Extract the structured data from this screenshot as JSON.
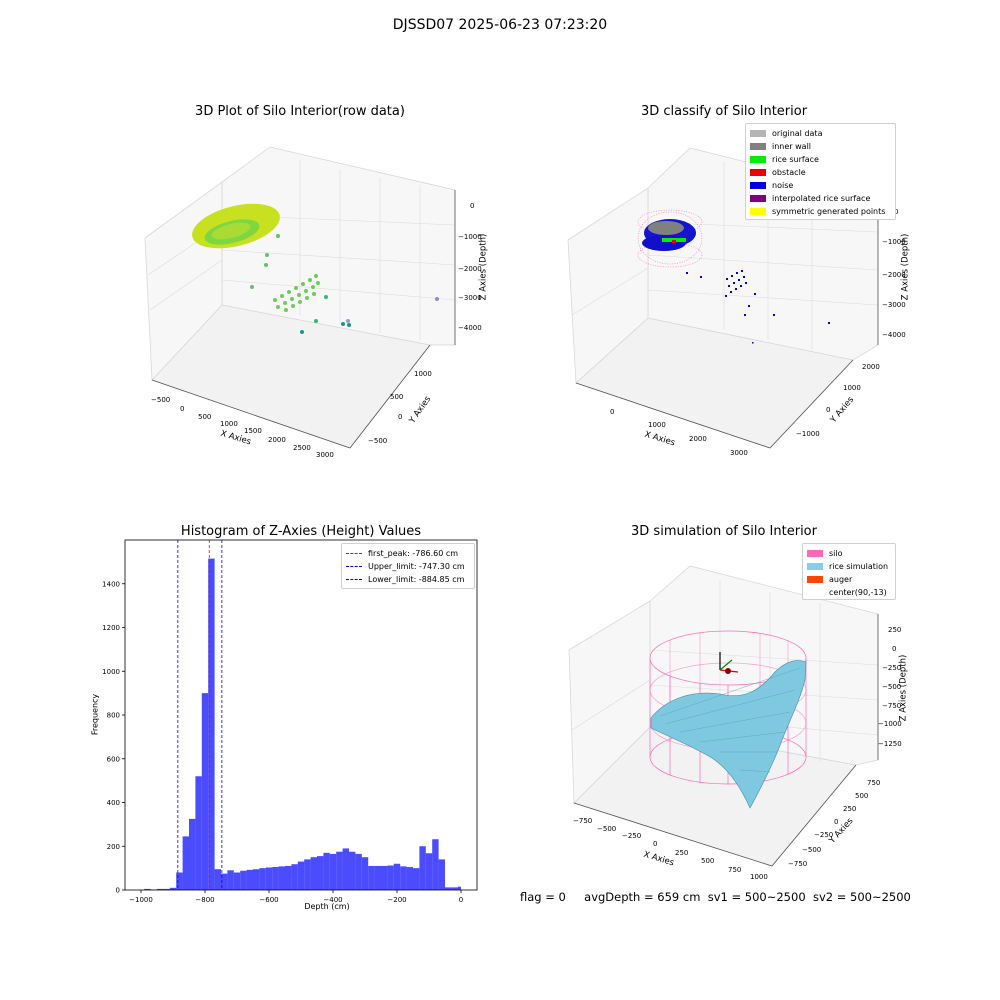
{
  "suptitle": "DJSSD07 2025-06-23 07:23:20",
  "panels": {
    "p1": {
      "title": "3D Plot of Silo Interior(row data)",
      "xlabel": "X Axies",
      "ylabel": "Y Axies",
      "zlabel": "Z Axies (Depth)",
      "xticks": [
        "−500",
        "0",
        "500",
        "1000",
        "1500",
        "2000",
        "2500",
        "3000"
      ],
      "yticks": [
        "1000",
        "500",
        "0",
        "−500"
      ],
      "zticks": [
        "0",
        "−1000",
        "−2000",
        "−3000",
        "−4000"
      ]
    },
    "p2": {
      "title": "3D classify of Silo Interior",
      "xlabel": "X Axies",
      "ylabel": "Y Axies",
      "zlabel": "Z Axies (Depth)",
      "xticks": [
        "0",
        "1000",
        "2000",
        "3000"
      ],
      "yticks": [
        "2000",
        "1000",
        "0",
        "−1000"
      ],
      "zticks": [
        "0",
        "−1000",
        "−2000",
        "−3000",
        "−4000"
      ],
      "legend": [
        {
          "label": "original data",
          "color": "#b4b4b4"
        },
        {
          "label": "inner wall",
          "color": "#808080"
        },
        {
          "label": "rice surface",
          "color": "#00ee00"
        },
        {
          "label": "obstacle",
          "color": "#ee0000"
        },
        {
          "label": "noise",
          "color": "#0000dd"
        },
        {
          "label": "interpolated rice surface",
          "color": "#800080"
        },
        {
          "label": "symmetric generated points",
          "color": "#ffff00"
        }
      ]
    },
    "p3": {
      "title": "3D simulation of Silo Interior",
      "xlabel": "X Axies",
      "ylabel": "Y Axies",
      "zlabel": "Z Axies (Depth)",
      "xticks": [
        "−750",
        "−500",
        "−250",
        "0",
        "250",
        "500",
        "750",
        "1000"
      ],
      "yticks": [
        "750",
        "500",
        "250",
        "0",
        "−250",
        "−500",
        "−750"
      ],
      "zticks": [
        "250",
        "0",
        "−250",
        "−500",
        "−750",
        "−1000",
        "−1250"
      ],
      "legend": [
        {
          "label": "silo",
          "color": "#ff69b4"
        },
        {
          "label": "rice simulation",
          "color": "#87ceeb"
        },
        {
          "label": "auger",
          "color": "#ff4500"
        },
        {
          "label": "center(90,-13)",
          "color": "#ffffff"
        }
      ]
    }
  },
  "chart_data": {
    "type": "bar",
    "title": "Histogram of Z-Axies (Height) Values",
    "xlabel": "Depth (cm)",
    "ylabel": "Frequency",
    "xlim": [
      -1050,
      50
    ],
    "ylim": [
      0,
      1600
    ],
    "xticks": [
      -1000,
      -800,
      -600,
      -400,
      -200,
      0
    ],
    "yticks": [
      0,
      200,
      400,
      600,
      800,
      1000,
      1200,
      1400
    ],
    "bar_color": "#0000ff",
    "bins": [
      {
        "x0": -1010,
        "x1": -990,
        "y": 0
      },
      {
        "x0": -990,
        "x1": -970,
        "y": 5
      },
      {
        "x0": -970,
        "x1": -950,
        "y": 2
      },
      {
        "x0": -950,
        "x1": -930,
        "y": 5
      },
      {
        "x0": -930,
        "x1": -910,
        "y": 5
      },
      {
        "x0": -910,
        "x1": -890,
        "y": 10
      },
      {
        "x0": -890,
        "x1": -870,
        "y": 80
      },
      {
        "x0": -870,
        "x1": -850,
        "y": 245
      },
      {
        "x0": -850,
        "x1": -830,
        "y": 325
      },
      {
        "x0": -830,
        "x1": -810,
        "y": 520
      },
      {
        "x0": -810,
        "x1": -790,
        "y": 900
      },
      {
        "x0": -790,
        "x1": -770,
        "y": 1515
      },
      {
        "x0": -770,
        "x1": -750,
        "y": 95
      },
      {
        "x0": -750,
        "x1": -730,
        "y": 75
      },
      {
        "x0": -730,
        "x1": -710,
        "y": 90
      },
      {
        "x0": -710,
        "x1": -690,
        "y": 80
      },
      {
        "x0": -690,
        "x1": -670,
        "y": 88
      },
      {
        "x0": -670,
        "x1": -650,
        "y": 92
      },
      {
        "x0": -650,
        "x1": -630,
        "y": 95
      },
      {
        "x0": -630,
        "x1": -610,
        "y": 100
      },
      {
        "x0": -610,
        "x1": -590,
        "y": 103
      },
      {
        "x0": -590,
        "x1": -570,
        "y": 105
      },
      {
        "x0": -570,
        "x1": -550,
        "y": 108
      },
      {
        "x0": -550,
        "x1": -530,
        "y": 110
      },
      {
        "x0": -530,
        "x1": -510,
        "y": 118
      },
      {
        "x0": -510,
        "x1": -490,
        "y": 130
      },
      {
        "x0": -490,
        "x1": -470,
        "y": 140
      },
      {
        "x0": -470,
        "x1": -450,
        "y": 150
      },
      {
        "x0": -450,
        "x1": -430,
        "y": 155
      },
      {
        "x0": -430,
        "x1": -410,
        "y": 170
      },
      {
        "x0": -410,
        "x1": -390,
        "y": 165
      },
      {
        "x0": -390,
        "x1": -370,
        "y": 175
      },
      {
        "x0": -370,
        "x1": -350,
        "y": 190
      },
      {
        "x0": -350,
        "x1": -330,
        "y": 175
      },
      {
        "x0": -330,
        "x1": -310,
        "y": 165
      },
      {
        "x0": -310,
        "x1": -290,
        "y": 150
      },
      {
        "x0": -290,
        "x1": -270,
        "y": 110
      },
      {
        "x0": -270,
        "x1": -250,
        "y": 110
      },
      {
        "x0": -250,
        "x1": -230,
        "y": 110
      },
      {
        "x0": -230,
        "x1": -210,
        "y": 112
      },
      {
        "x0": -210,
        "x1": -190,
        "y": 120
      },
      {
        "x0": -190,
        "x1": -170,
        "y": 108
      },
      {
        "x0": -170,
        "x1": -150,
        "y": 105
      },
      {
        "x0": -150,
        "x1": -130,
        "y": 100
      },
      {
        "x0": -130,
        "x1": -110,
        "y": 200
      },
      {
        "x0": -110,
        "x1": -90,
        "y": 168
      },
      {
        "x0": -90,
        "x1": -70,
        "y": 232
      },
      {
        "x0": -70,
        "x1": -50,
        "y": 140
      },
      {
        "x0": -50,
        "x1": -30,
        "y": 12
      },
      {
        "x0": -30,
        "x1": -10,
        "y": 12
      },
      {
        "x0": -10,
        "x1": 0,
        "y": 15
      }
    ],
    "vlines": [
      {
        "x": -786.6,
        "color": "#ff0000",
        "label": "first_peak: -786.60 cm"
      },
      {
        "x": -747.3,
        "color": "#0000ff",
        "label": "Upper_limit: -747.30 cm"
      },
      {
        "x": -884.85,
        "color": "#0000ff",
        "label": "Lower_limit: -884.85 cm"
      }
    ],
    "legend_position": "upper right"
  },
  "footer": {
    "flag": "flag = 0",
    "avg": "avgDepth = 659 cm",
    "sv1": "sv1 = 500~2500",
    "sv2": "sv2 = 500~2500"
  }
}
